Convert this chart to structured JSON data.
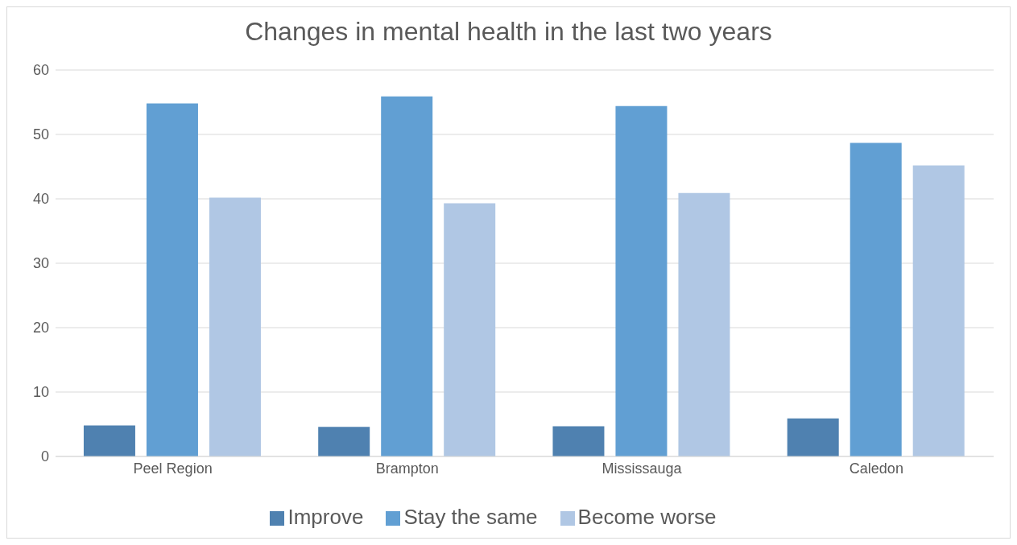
{
  "chart_data": {
    "type": "bar",
    "title": "Changes in mental health in the last two years",
    "categories": [
      "Peel Region",
      "Brampton",
      "Mississauga",
      "Caledon"
    ],
    "series": [
      {
        "name": "Improve",
        "color": "#4f81b0",
        "values": [
          4.8,
          4.6,
          4.7,
          5.9
        ]
      },
      {
        "name": "Stay the same",
        "color": "#619fd3",
        "values": [
          54.8,
          55.9,
          54.4,
          48.7
        ]
      },
      {
        "name": "Become worse",
        "color": "#b0c7e4",
        "values": [
          40.2,
          39.3,
          40.9,
          45.2
        ]
      }
    ],
    "ylim": [
      0,
      60
    ],
    "yticks": [
      0,
      10,
      20,
      30,
      40,
      50,
      60
    ],
    "grid": "y",
    "legend": "bottom"
  }
}
